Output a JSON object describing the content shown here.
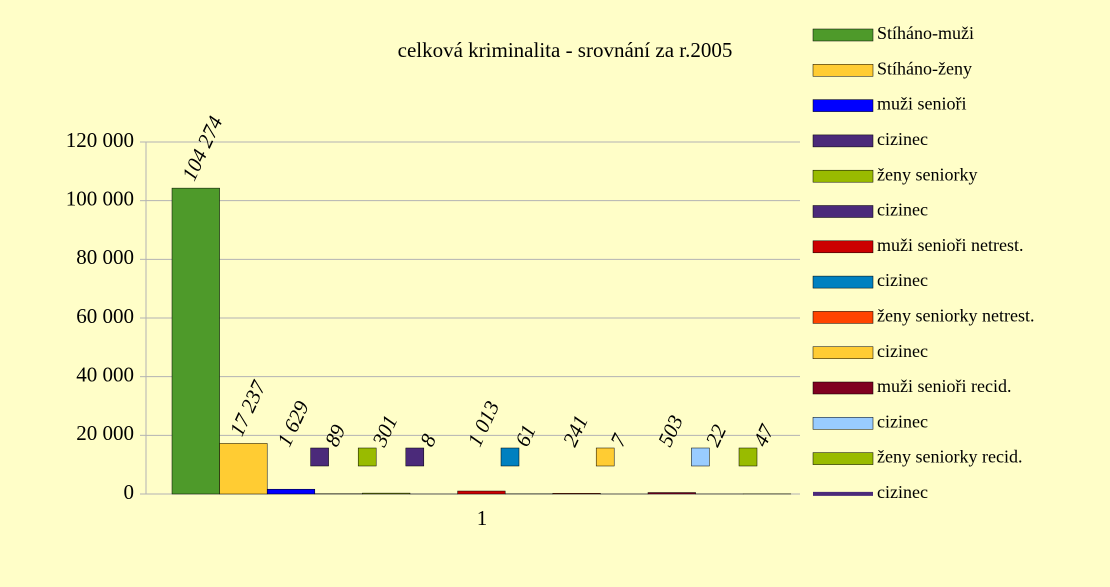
{
  "chart_data": {
    "type": "bar",
    "title": "celková kriminalita - srovnání za r.2005",
    "categories": [
      "1"
    ],
    "series": [
      {
        "name": "Stíháno-muži",
        "color": "#4e9a2a",
        "values": [
          104274
        ],
        "value_labels": [
          "104 274"
        ]
      },
      {
        "name": "Stíháno-ženy",
        "color": "#ffcc33",
        "values": [
          17237
        ],
        "value_labels": [
          "17 237"
        ]
      },
      {
        "name": "muži senioři",
        "color": "#0000ff",
        "values": [
          1629
        ],
        "value_labels": [
          "1 629"
        ]
      },
      {
        "name": "cizinec",
        "color": "#4b2a7a",
        "values": [
          89
        ]
      },
      {
        "name": "ženy seniorky",
        "color": "#99bb00",
        "values": [
          301
        ]
      },
      {
        "name": "cizinec",
        "color": "#4b2a7a",
        "values": [
          8
        ]
      },
      {
        "name": "muži senioři netrest.",
        "color": "#cc0000",
        "values": [
          1013
        ],
        "value_labels": [
          "1 013"
        ]
      },
      {
        "name": "cizinec",
        "color": "#0080c0",
        "values": [
          61
        ]
      },
      {
        "name": "ženy seniorky netrest.",
        "color": "#ff4400",
        "values": [
          241
        ]
      },
      {
        "name": "cizinec",
        "color": "#ffcc33",
        "values": [
          7
        ]
      },
      {
        "name": "muži senioři recid.",
        "color": "#800020",
        "values": [
          503
        ]
      },
      {
        "name": "cizinec",
        "color": "#99ccff",
        "values": [
          22
        ]
      },
      {
        "name": "ženy seniorky recid.",
        "color": "#99bb00",
        "values": [
          47
        ]
      },
      {
        "name": "cizinec",
        "color": "#4b2a7a",
        "type": "line",
        "values": [
          null
        ]
      }
    ],
    "ylim": [
      0,
      120000
    ],
    "yticks": [
      0,
      {
        "value": 20000,
        "label": "20 000"
      },
      {
        "value": 40000,
        "label": "40 000"
      },
      {
        "value": 60000,
        "label": "60 000"
      },
      {
        "value": 80000,
        "label": "80 000"
      },
      {
        "value": 100000,
        "label": "100 000"
      },
      {
        "value": 120000,
        "label": "120 000"
      }
    ],
    "grid": true,
    "legend": "right"
  }
}
